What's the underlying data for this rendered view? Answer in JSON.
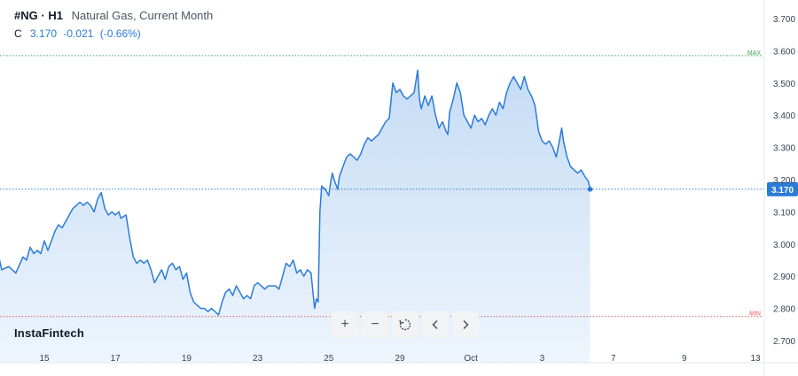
{
  "header": {
    "symbol": "#NG",
    "separator": "·",
    "timeframe": "H1",
    "instrument": "Natural Gas, Current Month",
    "ohlc_key": "C",
    "close": "3.170",
    "change": "-0.021",
    "change_pct": "(-0.66%)"
  },
  "brand": "InstaFintech",
  "toolbar": {
    "zoom_in": "+",
    "zoom_out": "−",
    "reset_icon": "reset-icon",
    "back_icon": "chevron-left-icon",
    "forward_icon": "chevron-right-icon"
  },
  "colors": {
    "line": "#2b7bd8",
    "area_top": "#c5dcf5",
    "area_bottom": "#eef5fd",
    "max_line": "#3aa655",
    "min_line": "#e05a5a",
    "last_price_bg": "#2b7bd8"
  },
  "chart_data": {
    "type": "area",
    "title": "Natural Gas, Current Month",
    "xlabel": "",
    "ylabel": "",
    "ylim": [
      2.675,
      3.725
    ],
    "yticks": [
      "2.700",
      "2.800",
      "2.900",
      "3.000",
      "3.100",
      "3.200",
      "3.300",
      "3.400",
      "3.500",
      "3.600",
      "3.700"
    ],
    "xticks": [
      {
        "label": "15",
        "t": 2
      },
      {
        "label": "17",
        "t": 4
      },
      {
        "label": "19",
        "t": 6
      },
      {
        "label": "23",
        "t": 8
      },
      {
        "label": "25",
        "t": 10
      },
      {
        "label": "29",
        "t": 12
      },
      {
        "label": "Oct",
        "t": 14
      },
      {
        "label": "3",
        "t": 16
      },
      {
        "label": "7",
        "t": 18
      },
      {
        "label": "9",
        "t": 20
      },
      {
        "label": "13",
        "t": 22
      }
    ],
    "max_label": "MAX",
    "max_value": 3.585,
    "min_label": "MIN",
    "min_value": 2.775,
    "last_value": "3.170",
    "grid": false,
    "series": [
      {
        "values": [
          [
            0.7,
            2.97
          ],
          [
            0.8,
            2.92
          ],
          [
            1.0,
            2.93
          ],
          [
            1.2,
            2.91
          ],
          [
            1.4,
            2.96
          ],
          [
            1.5,
            2.95
          ],
          [
            1.6,
            2.99
          ],
          [
            1.7,
            2.97
          ],
          [
            1.8,
            2.98
          ],
          [
            1.9,
            2.97
          ],
          [
            2.0,
            3.01
          ],
          [
            2.1,
            2.98
          ],
          [
            2.2,
            3.01
          ],
          [
            2.3,
            3.04
          ],
          [
            2.4,
            3.06
          ],
          [
            2.5,
            3.05
          ],
          [
            2.6,
            3.07
          ],
          [
            2.7,
            3.09
          ],
          [
            2.8,
            3.11
          ],
          [
            2.9,
            3.12
          ],
          [
            3.0,
            3.13
          ],
          [
            3.1,
            3.12
          ],
          [
            3.2,
            3.13
          ],
          [
            3.3,
            3.12
          ],
          [
            3.4,
            3.1
          ],
          [
            3.5,
            3.14
          ],
          [
            3.6,
            3.16
          ],
          [
            3.7,
            3.11
          ],
          [
            3.8,
            3.09
          ],
          [
            3.9,
            3.1
          ],
          [
            4.0,
            3.09
          ],
          [
            4.1,
            3.1
          ],
          [
            4.15,
            3.08
          ],
          [
            4.3,
            3.09
          ],
          [
            4.4,
            3.02
          ],
          [
            4.5,
            2.96
          ],
          [
            4.6,
            2.94
          ],
          [
            4.7,
            2.95
          ],
          [
            4.8,
            2.94
          ],
          [
            4.9,
            2.95
          ],
          [
            5.0,
            2.92
          ],
          [
            5.1,
            2.88
          ],
          [
            5.2,
            2.9
          ],
          [
            5.3,
            2.92
          ],
          [
            5.4,
            2.89
          ],
          [
            5.5,
            2.93
          ],
          [
            5.6,
            2.94
          ],
          [
            5.7,
            2.92
          ],
          [
            5.8,
            2.93
          ],
          [
            5.9,
            2.89
          ],
          [
            6.0,
            2.91
          ],
          [
            6.1,
            2.85
          ],
          [
            6.2,
            2.82
          ],
          [
            6.3,
            2.81
          ],
          [
            6.4,
            2.8
          ],
          [
            6.5,
            2.8
          ],
          [
            6.6,
            2.79
          ],
          [
            6.7,
            2.8
          ],
          [
            6.8,
            2.79
          ],
          [
            6.9,
            2.78
          ],
          [
            7.0,
            2.82
          ],
          [
            7.1,
            2.85
          ],
          [
            7.2,
            2.86
          ],
          [
            7.3,
            2.84
          ],
          [
            7.4,
            2.87
          ],
          [
            7.5,
            2.85
          ],
          [
            7.6,
            2.83
          ],
          [
            7.7,
            2.84
          ],
          [
            7.8,
            2.83
          ],
          [
            7.9,
            2.87
          ],
          [
            8.0,
            2.88
          ],
          [
            8.1,
            2.87
          ],
          [
            8.2,
            2.86
          ],
          [
            8.3,
            2.87
          ],
          [
            8.4,
            2.87
          ],
          [
            8.5,
            2.87
          ],
          [
            8.6,
            2.86
          ],
          [
            8.7,
            2.9
          ],
          [
            8.8,
            2.94
          ],
          [
            8.9,
            2.93
          ],
          [
            9.0,
            2.95
          ],
          [
            9.1,
            2.91
          ],
          [
            9.2,
            2.92
          ],
          [
            9.3,
            2.9
          ],
          [
            9.4,
            2.92
          ],
          [
            9.5,
            2.91
          ],
          [
            9.6,
            2.8
          ],
          [
            9.65,
            2.83
          ],
          [
            9.7,
            2.82
          ],
          [
            9.75,
            3.1
          ],
          [
            9.8,
            3.18
          ],
          [
            9.9,
            3.17
          ],
          [
            10.0,
            3.15
          ],
          [
            10.05,
            3.19
          ],
          [
            10.1,
            3.22
          ],
          [
            10.15,
            3.2
          ],
          [
            10.25,
            3.17
          ],
          [
            10.3,
            3.21
          ],
          [
            10.4,
            3.24
          ],
          [
            10.5,
            3.27
          ],
          [
            10.6,
            3.28
          ],
          [
            10.7,
            3.27
          ],
          [
            10.8,
            3.26
          ],
          [
            10.9,
            3.28
          ],
          [
            11.0,
            3.31
          ],
          [
            11.1,
            3.33
          ],
          [
            11.2,
            3.32
          ],
          [
            11.3,
            3.33
          ],
          [
            11.4,
            3.34
          ],
          [
            11.5,
            3.36
          ],
          [
            11.6,
            3.38
          ],
          [
            11.7,
            3.39
          ],
          [
            11.8,
            3.5
          ],
          [
            11.9,
            3.47
          ],
          [
            12.0,
            3.48
          ],
          [
            12.1,
            3.46
          ],
          [
            12.2,
            3.45
          ],
          [
            12.3,
            3.46
          ],
          [
            12.4,
            3.47
          ],
          [
            12.5,
            3.54
          ],
          [
            12.55,
            3.45
          ],
          [
            12.6,
            3.42
          ],
          [
            12.7,
            3.46
          ],
          [
            12.8,
            3.43
          ],
          [
            12.9,
            3.46
          ],
          [
            13.0,
            3.4
          ],
          [
            13.1,
            3.36
          ],
          [
            13.2,
            3.38
          ],
          [
            13.3,
            3.35
          ],
          [
            13.35,
            3.34
          ],
          [
            13.4,
            3.41
          ],
          [
            13.5,
            3.45
          ],
          [
            13.6,
            3.5
          ],
          [
            13.7,
            3.47
          ],
          [
            13.8,
            3.4
          ],
          [
            13.9,
            3.38
          ],
          [
            14.0,
            3.36
          ],
          [
            14.1,
            3.4
          ],
          [
            14.2,
            3.38
          ],
          [
            14.3,
            3.39
          ],
          [
            14.4,
            3.37
          ],
          [
            14.5,
            3.4
          ],
          [
            14.6,
            3.42
          ],
          [
            14.7,
            3.4
          ],
          [
            14.8,
            3.44
          ],
          [
            14.9,
            3.42
          ],
          [
            15.0,
            3.47
          ],
          [
            15.1,
            3.5
          ],
          [
            15.2,
            3.52
          ],
          [
            15.3,
            3.5
          ],
          [
            15.4,
            3.48
          ],
          [
            15.5,
            3.52
          ],
          [
            15.6,
            3.48
          ],
          [
            15.7,
            3.46
          ],
          [
            15.8,
            3.43
          ],
          [
            15.9,
            3.35
          ],
          [
            16.0,
            3.32
          ],
          [
            16.1,
            3.31
          ],
          [
            16.2,
            3.32
          ],
          [
            16.3,
            3.3
          ],
          [
            16.4,
            3.27
          ],
          [
            16.5,
            3.33
          ],
          [
            16.55,
            3.36
          ],
          [
            16.6,
            3.32
          ],
          [
            16.7,
            3.27
          ],
          [
            16.8,
            3.24
          ],
          [
            16.9,
            3.23
          ],
          [
            17.0,
            3.22
          ],
          [
            17.1,
            3.23
          ],
          [
            17.2,
            3.21
          ],
          [
            17.3,
            3.195
          ],
          [
            17.35,
            3.17
          ]
        ]
      }
    ]
  }
}
